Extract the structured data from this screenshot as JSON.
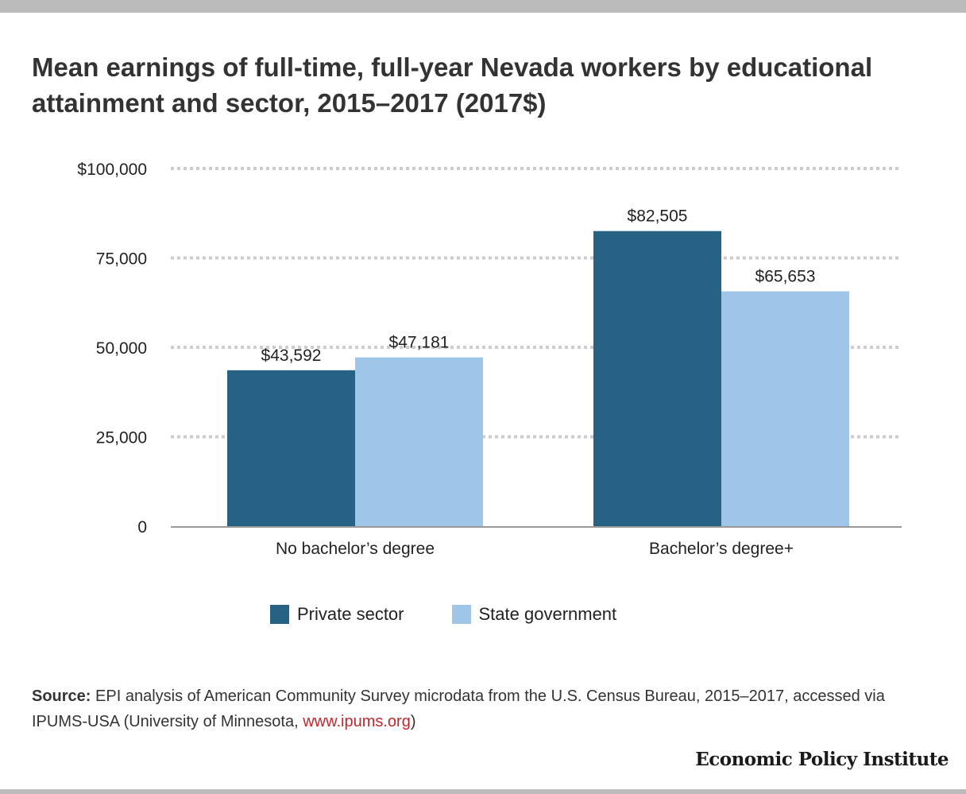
{
  "chart_data": {
    "type": "bar",
    "title": "Mean earnings of full-time, full-year Nevada workers by educational attainment and sector, 2015–2017 (2017$)",
    "categories": [
      "No bachelor’s degree",
      "Bachelor’s degree+"
    ],
    "series": [
      {
        "name": "Private sector",
        "values": [
          43592,
          82505
        ],
        "labels": [
          "$43,592",
          "$82,505"
        ],
        "color": "#266283"
      },
      {
        "name": "State government",
        "values": [
          47181,
          65653
        ],
        "labels": [
          "$47,181",
          "$65,653"
        ],
        "color": "#9fc5e8"
      }
    ],
    "ylim": [
      0,
      100000
    ],
    "yticks": [
      0,
      25000,
      50000,
      75000,
      100000
    ],
    "ytick_labels": [
      "0",
      "25,000",
      "50,000",
      "75,000",
      "$100,000"
    ],
    "grid": true,
    "legend": "bottom-center",
    "xlabel": "",
    "ylabel": ""
  },
  "source": {
    "label": "Source:",
    "text": " EPI analysis of American Community Survey microdata from the U.S. Census Bureau, 2015–2017, accessed via IPUMS-USA (University of Minnesota, ",
    "link": "www.ipums.org",
    "end": ")"
  },
  "logo": "Economic Policy Institute"
}
